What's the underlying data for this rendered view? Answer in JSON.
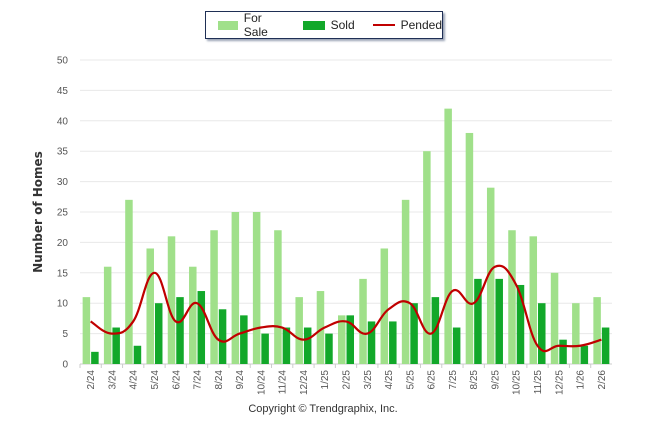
{
  "chart_data": {
    "type": "bar",
    "title": "",
    "xlabel": "",
    "ylabel": "Number of Homes",
    "ylim": [
      0,
      50
    ],
    "yticks": [
      "0",
      "5",
      "10",
      "15",
      "20",
      "25",
      "30",
      "35",
      "40",
      "45",
      "50"
    ],
    "grid": true,
    "legend_position": "top-center",
    "categories": [
      "2/24",
      "3/24",
      "4/24",
      "5/24",
      "6/24",
      "7/24",
      "8/24",
      "9/24",
      "10/24",
      "11/24",
      "12/24",
      "1/25",
      "2/25",
      "3/25",
      "4/25",
      "5/25",
      "6/25",
      "7/25",
      "8/25",
      "9/25",
      "10/25",
      "11/25",
      "12/25",
      "1/26",
      "2/26"
    ],
    "series": [
      {
        "name": "For Sale",
        "type": "bar",
        "color": "#a0e08a",
        "values": [
          11,
          16,
          27,
          19,
          21,
          16,
          22,
          25,
          25,
          22,
          11,
          12,
          8,
          14,
          19,
          27,
          35,
          42,
          38,
          29,
          22,
          21,
          15,
          10,
          11
        ]
      },
      {
        "name": "Sold",
        "type": "bar",
        "color": "#12a82a",
        "values": [
          2,
          6,
          3,
          10,
          11,
          12,
          9,
          8,
          5,
          6,
          6,
          5,
          8,
          7,
          7,
          10,
          11,
          6,
          14,
          14,
          13,
          10,
          4,
          3,
          6
        ]
      },
      {
        "name": "Pended",
        "type": "line",
        "color": "#c00000",
        "values": [
          7,
          5,
          7,
          15,
          7,
          10,
          4,
          5,
          6,
          6,
          4,
          6,
          7,
          5,
          9,
          10,
          5,
          12,
          10,
          16,
          13,
          3,
          3,
          3,
          4
        ]
      }
    ]
  },
  "footer": {
    "copyright": "Copyright © Trendgraphix, Inc."
  }
}
